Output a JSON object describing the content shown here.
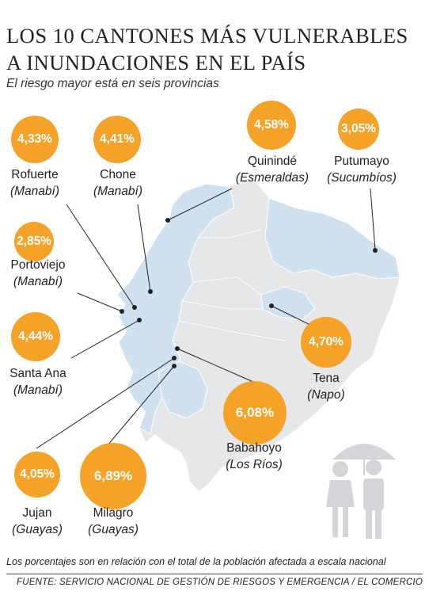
{
  "title": "LOS 10 CANTONES MÁS VULNERABLES A INUNDACIONES EN EL PAÍS",
  "subtitle": "El riesgo mayor está en seis provincias",
  "cantons": [
    {
      "pct": "4,33%",
      "city": "Rofuerte",
      "prov": "(Manabí)"
    },
    {
      "pct": "4,41%",
      "city": "Chone",
      "prov": "(Manabí)"
    },
    {
      "pct": "4,58%",
      "city": "Quinindé",
      "prov": "(Esmeraldas)"
    },
    {
      "pct": "3,05%",
      "city": "Putumayo",
      "prov": "(Sucumbíos)"
    },
    {
      "pct": "2,85%",
      "city": "Portoviejo",
      "prov": "(Manabí)"
    },
    {
      "pct": "4,44%",
      "city": "Santa Ana",
      "prov": "(Manabí)"
    },
    {
      "pct": "4,70%",
      "city": "Tena",
      "prov": "(Napo)"
    },
    {
      "pct": "6,08%",
      "city": "Babahoyo",
      "prov": "(Los Ríos)"
    },
    {
      "pct": "4,05%",
      "city": "Jujan",
      "prov": "(Guayas)"
    },
    {
      "pct": "6,89%",
      "city": "Milagro",
      "prov": "(Guayas)"
    }
  ],
  "note": "Los porcentajes son en relación con el total de la población afectada a escala nacional",
  "source": "FUENTE: SERVICIO NACIONAL DE GESTIÓN DE RIESGOS Y EMERGENCIA / EL COMERCIO",
  "colors": {
    "bubble": "#f4a228",
    "map_highlight": "#cfe0ee",
    "map_base": "#e6e7e9"
  }
}
